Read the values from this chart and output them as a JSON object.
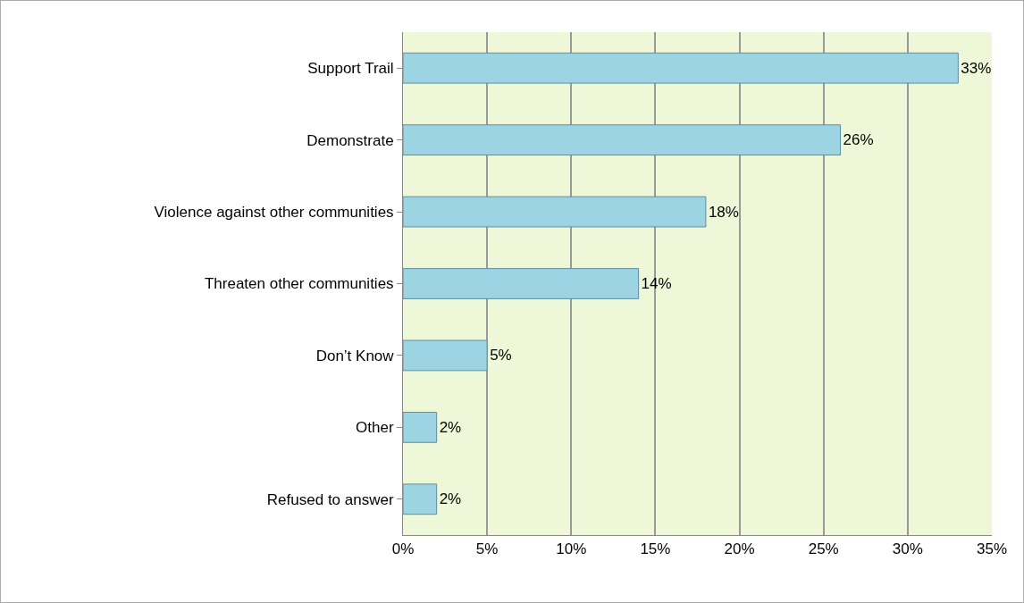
{
  "chart_data": {
    "type": "bar",
    "orientation": "horizontal",
    "categories": [
      "Support Trail",
      "Demonstrate",
      "Violence against other communities",
      "Threaten other communities",
      "Don’t Know",
      "Other",
      "Refused to answer"
    ],
    "values": [
      33,
      26,
      18,
      14,
      5,
      2,
      2
    ],
    "value_labels": [
      "33%",
      "26%",
      "18%",
      "14%",
      "5%",
      "2%",
      "2%"
    ],
    "color": "#9dd4e4",
    "xlim": [
      0,
      35
    ],
    "xticks": [
      {
        "value": 0,
        "label": "0%"
      },
      {
        "value": 5,
        "label": "5%"
      },
      {
        "value": 10,
        "label": "10%"
      },
      {
        "value": 15,
        "label": "15%"
      },
      {
        "value": 20,
        "label": "20%"
      },
      {
        "value": 25,
        "label": "25%"
      },
      {
        "value": 30,
        "label": "30%"
      },
      {
        "value": 35,
        "label": "35%"
      }
    ],
    "grid": "x"
  }
}
